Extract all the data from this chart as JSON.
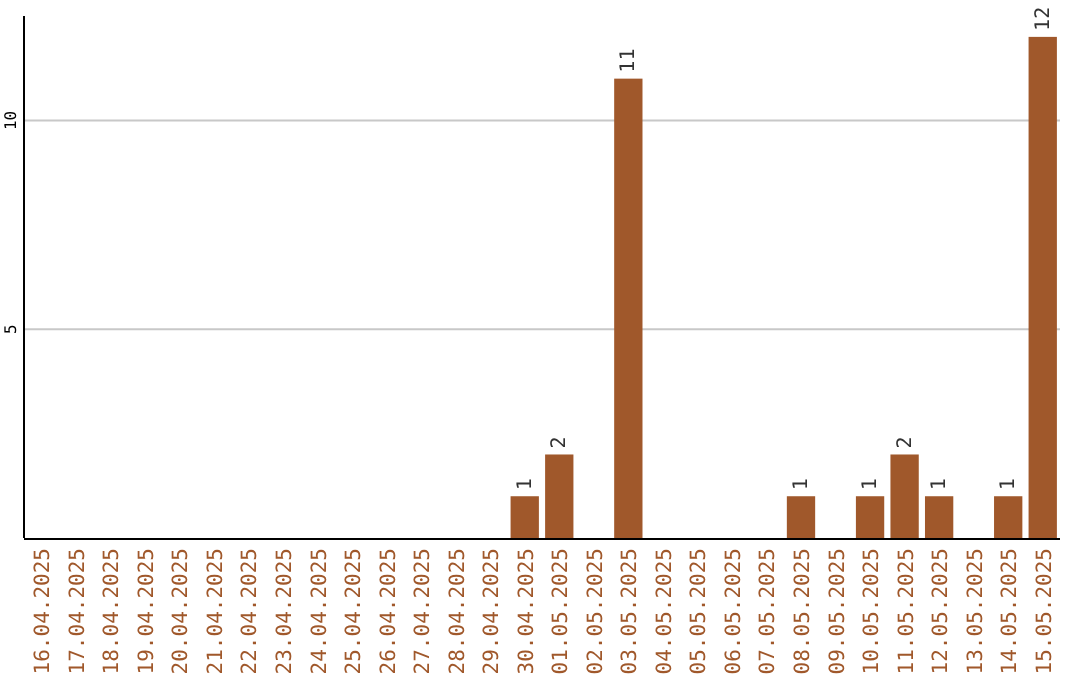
{
  "chart_data": {
    "type": "bar",
    "categories": [
      "16.04.2025",
      "17.04.2025",
      "18.04.2025",
      "19.04.2025",
      "20.04.2025",
      "21.04.2025",
      "22.04.2025",
      "23.04.2025",
      "24.04.2025",
      "25.04.2025",
      "26.04.2025",
      "27.04.2025",
      "28.04.2025",
      "29.04.2025",
      "30.04.2025",
      "01.05.2025",
      "02.05.2025",
      "03.05.2025",
      "04.05.2025",
      "05.05.2025",
      "06.05.2025",
      "07.05.2025",
      "08.05.2025",
      "09.05.2025",
      "10.05.2025",
      "11.05.2025",
      "12.05.2025",
      "13.05.2025",
      "14.05.2025",
      "15.05.2025"
    ],
    "values": [
      0,
      0,
      0,
      0,
      0,
      0,
      0,
      0,
      0,
      0,
      0,
      0,
      0,
      0,
      1,
      2,
      0,
      11,
      0,
      0,
      0,
      0,
      1,
      0,
      1,
      2,
      1,
      0,
      1,
      12
    ],
    "value_labels": [
      null,
      null,
      null,
      null,
      null,
      null,
      null,
      null,
      null,
      null,
      null,
      null,
      null,
      null,
      "1",
      "2",
      null,
      "11",
      null,
      null,
      null,
      null,
      "1",
      null,
      "1",
      "2",
      "1",
      null,
      "1",
      "12"
    ],
    "color": "#a0582b",
    "ylim": [
      0,
      12.5
    ],
    "yticks": [
      5,
      10
    ],
    "grid": "y"
  }
}
